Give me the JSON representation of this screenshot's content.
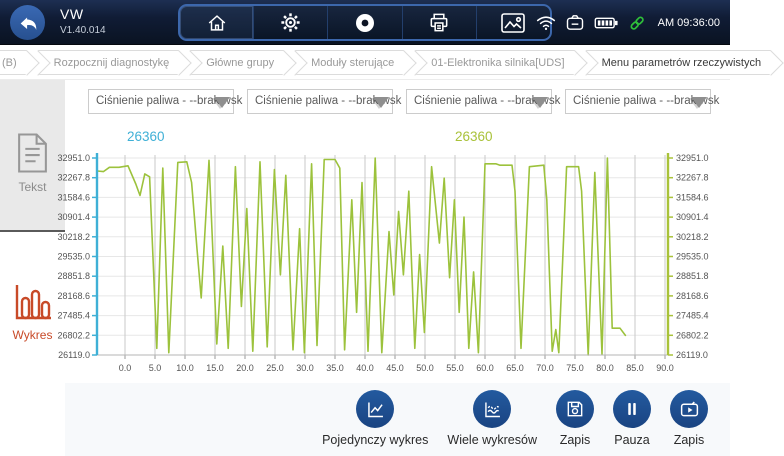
{
  "topbar": {
    "title": "VW",
    "version": "V1.40.014",
    "time": "AM 09:36:00",
    "toolbar_icons": [
      "home-icon",
      "settings-icon",
      "record-icon",
      "print-icon",
      "screenshot-icon"
    ],
    "status_icons": [
      "wifi-icon",
      "vci-device-icon",
      "battery-icon",
      "link-connected-icon"
    ]
  },
  "breadcrumb": {
    "items": [
      "(B)",
      "Rozpocznij diagnostykę",
      "Główne grupy",
      "Moduły sterujące",
      "01-Elektronika silnika[UDS]",
      "Menu parametrów rzeczywistych"
    ]
  },
  "sidebar": {
    "items": [
      {
        "label": "Tekst",
        "icon": "document-icon",
        "active": false
      },
      {
        "label": "Wykres",
        "icon": "bar-chart-icon",
        "active": true,
        "accent": "#c84a28"
      }
    ]
  },
  "selectors": {
    "items": [
      "Ciśnienie paliwa - --brak wsk",
      "Ciśnienie paliwa - --brak wsk",
      "Ciśnienie paliwa - --brak wsk",
      "Ciśnienie paliwa - --brak wsk"
    ]
  },
  "readouts": [
    {
      "value": "26360",
      "color": "#3fb0d6"
    },
    {
      "value": "26360",
      "color": "#a9c23a"
    }
  ],
  "chart_data": {
    "type": "line",
    "title": "",
    "xlabel": "",
    "ylabel": "",
    "xlim": [
      0,
      90
    ],
    "ylim": [
      26119.0,
      32951.0
    ],
    "x_tick_step": 5,
    "x_ticks": [
      0,
      5,
      10,
      15,
      20,
      25,
      30,
      35,
      40,
      45,
      50,
      55,
      60,
      65,
      70,
      75,
      80,
      85,
      90
    ],
    "y_ticks": [
      "32951.0",
      "32267.8",
      "31584.6",
      "30901.4",
      "30218.2",
      "29535.0",
      "28851.8",
      "28168.6",
      "27485.4",
      "26802.2",
      "26119.0"
    ],
    "grid": true,
    "left_axis_color": "#3fb0d6",
    "right_axis_color": "#a9c23a",
    "series": [
      {
        "name": "Ciśnienie paliwa",
        "color": "#9cc23c",
        "points": [
          [
            -4.6,
            32500
          ],
          [
            -3.6,
            32480
          ],
          [
            -2.6,
            32630
          ],
          [
            -1.0,
            32630
          ],
          [
            0.5,
            32680
          ],
          [
            1.8,
            32050
          ],
          [
            2.5,
            31650
          ],
          [
            3.3,
            32400
          ],
          [
            4.1,
            32300
          ],
          [
            5.3,
            26350
          ],
          [
            6.3,
            32600
          ],
          [
            7.3,
            26200
          ],
          [
            8.8,
            32800
          ],
          [
            10.3,
            32820
          ],
          [
            11.1,
            32100
          ],
          [
            12.0,
            29800
          ],
          [
            12.7,
            28100
          ],
          [
            14.0,
            32870
          ],
          [
            15.3,
            26500
          ],
          [
            16.3,
            29900
          ],
          [
            17.2,
            26350
          ],
          [
            18.4,
            32650
          ],
          [
            19.4,
            27800
          ],
          [
            20.3,
            31200
          ],
          [
            21.3,
            26250
          ],
          [
            22.5,
            32820
          ],
          [
            23.7,
            26400
          ],
          [
            24.9,
            32550
          ],
          [
            25.9,
            28900
          ],
          [
            26.8,
            32350
          ],
          [
            28.0,
            26300
          ],
          [
            29.1,
            30500
          ],
          [
            29.9,
            26200
          ],
          [
            31.1,
            32750
          ],
          [
            32.0,
            26450
          ],
          [
            33.2,
            32900
          ],
          [
            35.0,
            32900
          ],
          [
            35.8,
            32600
          ],
          [
            36.6,
            26300
          ],
          [
            37.8,
            31500
          ],
          [
            38.6,
            27600
          ],
          [
            39.5,
            32100
          ],
          [
            40.5,
            26250
          ],
          [
            41.7,
            32950
          ],
          [
            42.8,
            26200
          ],
          [
            44.0,
            30400
          ],
          [
            44.8,
            28200
          ],
          [
            45.6,
            31100
          ],
          [
            46.4,
            28900
          ],
          [
            47.3,
            31800
          ],
          [
            48.3,
            26350
          ],
          [
            49.1,
            29600
          ],
          [
            49.9,
            26900
          ],
          [
            51.1,
            32650
          ],
          [
            52.4,
            30000
          ],
          [
            53.2,
            32250
          ],
          [
            54.1,
            28800
          ],
          [
            54.9,
            31500
          ],
          [
            55.7,
            27600
          ],
          [
            56.5,
            30900
          ],
          [
            57.3,
            26350
          ],
          [
            58.1,
            29000
          ],
          [
            58.9,
            26200
          ],
          [
            60.0,
            32750
          ],
          [
            61.8,
            32750
          ],
          [
            62.5,
            32700
          ],
          [
            64.5,
            32700
          ],
          [
            65.0,
            31800
          ],
          [
            66.0,
            26350
          ],
          [
            67.4,
            32650
          ],
          [
            69.8,
            32700
          ],
          [
            70.3,
            31500
          ],
          [
            71.2,
            26250
          ],
          [
            71.8,
            27000
          ],
          [
            72.3,
            26200
          ],
          [
            73.6,
            32650
          ],
          [
            75.6,
            32650
          ],
          [
            76.1,
            31800
          ],
          [
            77.2,
            26119
          ],
          [
            78.3,
            32450
          ],
          [
            79.5,
            26150
          ],
          [
            80.4,
            32951
          ],
          [
            81.2,
            27050
          ],
          [
            82.5,
            27050
          ],
          [
            83.4,
            26800
          ]
        ]
      }
    ]
  },
  "bottom_toolbar": {
    "buttons": [
      {
        "label": "Pojedynczy wykres",
        "icon": "single-chart-icon"
      },
      {
        "label": "Wiele wykresów",
        "icon": "multi-chart-icon"
      },
      {
        "label": "Zapis",
        "icon": "save-icon"
      },
      {
        "label": "Pauza",
        "icon": "pause-icon"
      },
      {
        "label": "Zapis",
        "icon": "record-video-icon"
      }
    ]
  }
}
